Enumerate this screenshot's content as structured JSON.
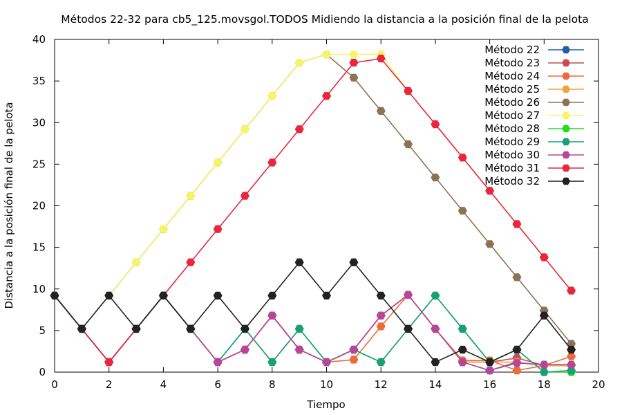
{
  "chart_data": {
    "type": "line",
    "title": "Métodos 22-32 para cb5_125.movsgol.TODOS Midiendo la distancia a la posición final de la pelota",
    "xlabel": "Tiempo",
    "ylabel": "Distancia a la posición final de la pelota",
    "xlim": [
      0,
      20
    ],
    "ylim": [
      0,
      40
    ],
    "xticks": [
      "0",
      "2",
      "4",
      "6",
      "8",
      "10",
      "12",
      "14",
      "16",
      "18",
      "20"
    ],
    "yticks": [
      "0",
      "5",
      "10",
      "15",
      "20",
      "25",
      "30",
      "35",
      "40"
    ],
    "grid": false,
    "legend_position": "top-right",
    "x": [
      0,
      1,
      2,
      3,
      4,
      5,
      6,
      7,
      8,
      9,
      10,
      11,
      12,
      13,
      14,
      15,
      16,
      17,
      18,
      19
    ],
    "series": [
      {
        "name": "Método 22",
        "color": "#1f5fa8",
        "values": [
          9.2,
          5.2,
          1.2,
          5.2,
          9.2,
          5.2,
          1.2,
          2.7,
          6.8,
          2.7,
          1.2,
          2.7,
          6.8,
          9.3,
          5.2,
          1.2,
          0.2,
          1.2,
          0.8,
          0.8
        ]
      },
      {
        "name": "Método 23",
        "color": "#c44e52",
        "values": [
          9.2,
          5.2,
          1.2,
          5.2,
          9.2,
          5.2,
          1.2,
          2.7,
          6.8,
          2.7,
          1.2,
          2.7,
          6.8,
          9.3,
          5.2,
          1.2,
          1.2,
          1.7,
          0.8,
          0.8
        ]
      },
      {
        "name": "Método 24",
        "color": "#ee6a3a",
        "values": [
          9.2,
          5.2,
          1.2,
          5.2,
          9.2,
          5.2,
          1.2,
          2.7,
          6.8,
          2.7,
          1.2,
          1.5,
          5.5,
          9.3,
          5.2,
          1.4,
          1.4,
          0.2,
          0.8,
          1.9
        ]
      },
      {
        "name": "Método 25",
        "color": "#f5a03a",
        "values": [
          9.2,
          5.2,
          1.2,
          5.2,
          9.2,
          5.2,
          1.2,
          2.7,
          6.8,
          2.7,
          1.2,
          2.7,
          6.8,
          9.3,
          5.2,
          1.2,
          1.2,
          1.2,
          0.8,
          0.8
        ]
      },
      {
        "name": "Método 26",
        "color": "#8b7355",
        "values": [
          9.2,
          5.2,
          9.2,
          13.2,
          17.2,
          21.2,
          25.2,
          29.2,
          33.2,
          37.2,
          38.2,
          35.4,
          31.4,
          27.4,
          23.4,
          19.4,
          15.4,
          11.4,
          7.4,
          3.4
        ]
      },
      {
        "name": "Método 27",
        "color": "#f7f46a",
        "values": [
          9.2,
          5.2,
          9.2,
          13.2,
          17.2,
          21.2,
          25.2,
          29.2,
          33.2,
          37.2,
          38.2,
          38.2,
          38.2,
          33.8,
          29.8,
          25.8,
          21.8,
          17.8,
          13.8,
          9.8
        ]
      },
      {
        "name": "Método 28",
        "color": "#22dd22",
        "values": [
          9.2,
          5.2,
          1.2,
          5.2,
          9.2,
          5.2,
          1.2,
          5.2,
          1.2,
          5.2,
          1.2,
          2.7,
          1.2,
          5.2,
          9.2,
          5.2,
          1.2,
          2.7,
          0.0,
          0.0
        ]
      },
      {
        "name": "Método 29",
        "color": "#1a9e77",
        "values": [
          9.2,
          5.2,
          1.2,
          5.2,
          9.2,
          5.2,
          1.2,
          5.2,
          1.2,
          5.2,
          1.2,
          2.7,
          1.2,
          5.2,
          9.2,
          5.2,
          1.2,
          2.7,
          0.0,
          0.2
        ]
      },
      {
        "name": "Método 30",
        "color": "#b5479a",
        "values": [
          9.2,
          5.2,
          1.2,
          5.2,
          9.2,
          5.2,
          1.2,
          2.7,
          6.8,
          2.7,
          1.2,
          2.7,
          6.8,
          9.3,
          5.2,
          1.2,
          0.2,
          1.1,
          0.9,
          0.9
        ]
      },
      {
        "name": "Método 31",
        "color": "#e8273f",
        "values": [
          9.2,
          5.2,
          1.2,
          5.2,
          9.2,
          13.2,
          17.2,
          21.2,
          25.2,
          29.2,
          33.2,
          37.2,
          37.7,
          33.8,
          29.8,
          25.8,
          21.8,
          17.8,
          13.8,
          9.8
        ]
      },
      {
        "name": "Método 32",
        "color": "#222222",
        "values": [
          9.2,
          5.2,
          9.2,
          5.2,
          9.2,
          5.2,
          9.2,
          5.2,
          9.2,
          13.2,
          9.2,
          13.2,
          9.2,
          5.2,
          1.2,
          2.7,
          1.2,
          2.7,
          6.8,
          2.7
        ]
      }
    ]
  }
}
